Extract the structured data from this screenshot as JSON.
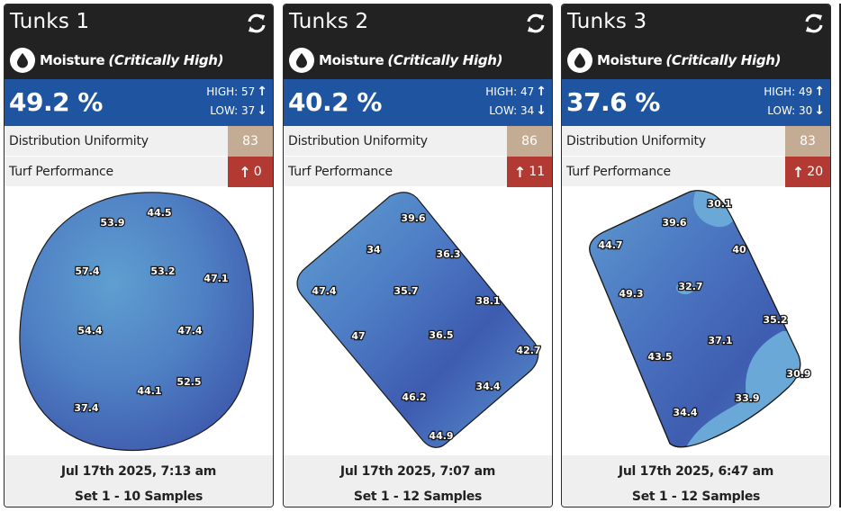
{
  "cards": [
    {
      "title": "Tunks 1",
      "metric": "Moisture",
      "status": "(Critically High)",
      "value": "49.2 %",
      "high_label": "HIGH: 57",
      "low_label": "LOW: 37",
      "distribution_label": "Distribution Uniformity",
      "distribution_value": "83",
      "turf_label": "Turf Performance",
      "turf_value": "0",
      "date": "Jul 17th 2025, 7:13 am",
      "set": "Set 1 - 10 Samples",
      "samples": [
        "53.9",
        "44.5",
        "57.4",
        "53.2",
        "47.1",
        "54.4",
        "47.4",
        "44.1",
        "52.5",
        "37.4"
      ]
    },
    {
      "title": "Tunks 2",
      "metric": "Moisture",
      "status": "(Critically High)",
      "value": "40.2 %",
      "high_label": "HIGH: 47",
      "low_label": "LOW: 34",
      "distribution_label": "Distribution Uniformity",
      "distribution_value": "86",
      "turf_label": "Turf Performance",
      "turf_value": "11",
      "date": "Jul 17th 2025, 7:07 am",
      "set": "Set 1 - 12 Samples",
      "samples": [
        "39.6",
        "34",
        "36.3",
        "47.4",
        "35.7",
        "38.1",
        "47",
        "36.5",
        "42.7",
        "46.2",
        "34.4",
        "44.9"
      ]
    },
    {
      "title": "Tunks 3",
      "metric": "Moisture",
      "status": "(Critically High)",
      "value": "37.6 %",
      "high_label": "HIGH: 49",
      "low_label": "LOW: 30",
      "distribution_label": "Distribution Uniformity",
      "distribution_value": "83",
      "turf_label": "Turf Performance",
      "turf_value": "20",
      "date": "Jul 17th 2025, 6:47 am",
      "set": "Set 1 - 12 Samples",
      "samples": [
        "30.1",
        "39.6",
        "44.7",
        "40",
        "49.3",
        "32.7",
        "35.2",
        "37.1",
        "43.5",
        "30.9",
        "33.9",
        "34.4"
      ]
    }
  ],
  "icons": {
    "refresh": "refresh-icon",
    "drop": "water-drop-icon",
    "high_arrow": "arrow-up-icon",
    "low_arrow": "arrow-down-icon"
  },
  "colors": {
    "header_bg": "#222222",
    "value_band": "#1f55a0",
    "distribution_badge": "#c4ab93",
    "turf_badge": "#b33a32"
  }
}
